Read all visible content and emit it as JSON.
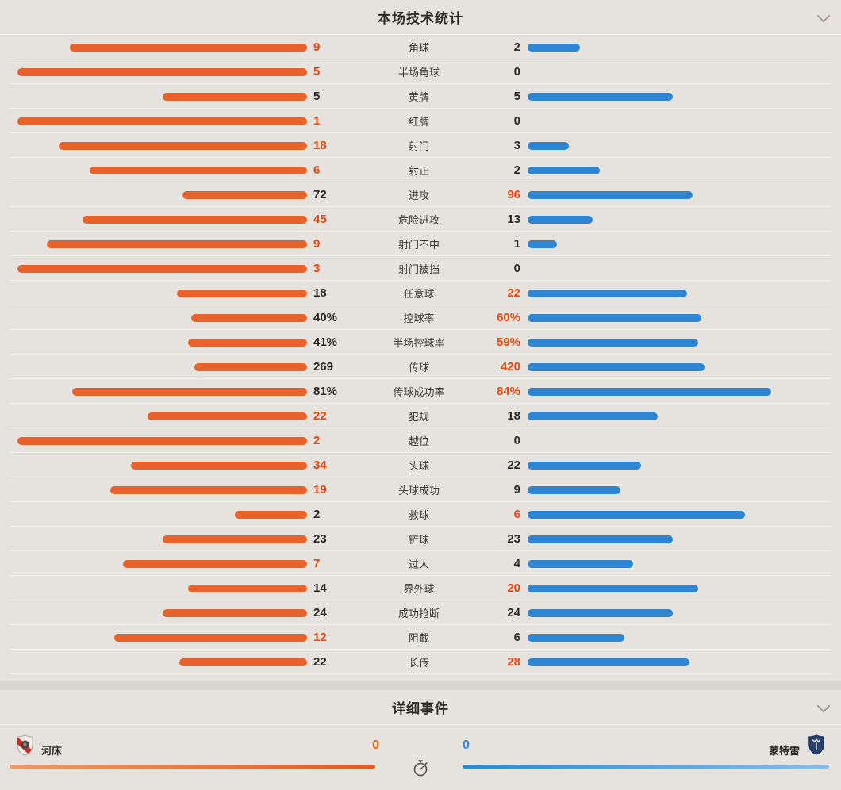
{
  "theme": {
    "home_color": "#e8622b",
    "away_color": "#2e86d2",
    "highlight_number_color": "#e8450f",
    "background": "#e6e2dd"
  },
  "stats_panel": {
    "title": "本场技术统计",
    "rows": [
      {
        "label": "角球",
        "left": "9",
        "right": "2",
        "left_w": 81.8,
        "right_w": 18.2,
        "left_hl": true,
        "right_hl": false
      },
      {
        "label": "半场角球",
        "left": "5",
        "right": "0",
        "left_w": 100,
        "right_w": 0,
        "left_hl": true,
        "right_hl": false
      },
      {
        "label": "黄牌",
        "left": "5",
        "right": "5",
        "left_w": 50,
        "right_w": 50,
        "left_hl": false,
        "right_hl": false
      },
      {
        "label": "红牌",
        "left": "1",
        "right": "0",
        "left_w": 100,
        "right_w": 0,
        "left_hl": true,
        "right_hl": false
      },
      {
        "label": "射门",
        "left": "18",
        "right": "3",
        "left_w": 85.7,
        "right_w": 14.3,
        "left_hl": true,
        "right_hl": false
      },
      {
        "label": "射正",
        "left": "6",
        "right": "2",
        "left_w": 75,
        "right_w": 25,
        "left_hl": true,
        "right_hl": false
      },
      {
        "label": "进攻",
        "left": "72",
        "right": "96",
        "left_w": 42.9,
        "right_w": 57.1,
        "left_hl": false,
        "right_hl": true
      },
      {
        "label": "危险进攻",
        "left": "45",
        "right": "13",
        "left_w": 77.6,
        "right_w": 22.4,
        "left_hl": true,
        "right_hl": false
      },
      {
        "label": "射门不中",
        "left": "9",
        "right": "1",
        "left_w": 90,
        "right_w": 10,
        "left_hl": true,
        "right_hl": false
      },
      {
        "label": "射门被挡",
        "left": "3",
        "right": "0",
        "left_w": 100,
        "right_w": 0,
        "left_hl": true,
        "right_hl": false
      },
      {
        "label": "任意球",
        "left": "18",
        "right": "22",
        "left_w": 45,
        "right_w": 55,
        "left_hl": false,
        "right_hl": true
      },
      {
        "label": "控球率",
        "left": "40%",
        "right": "60%",
        "left_w": 40,
        "right_w": 60,
        "left_hl": false,
        "right_hl": true
      },
      {
        "label": "半场控球率",
        "left": "41%",
        "right": "59%",
        "left_w": 41,
        "right_w": 59,
        "left_hl": false,
        "right_hl": true
      },
      {
        "label": "传球",
        "left": "269",
        "right": "420",
        "left_w": 39,
        "right_w": 61,
        "left_hl": false,
        "right_hl": true
      },
      {
        "label": "传球成功率",
        "left": "81%",
        "right": "84%",
        "left_w": 81,
        "right_w": 84,
        "left_hl": false,
        "right_hl": true
      },
      {
        "label": "犯规",
        "left": "22",
        "right": "18",
        "left_w": 55,
        "right_w": 45,
        "left_hl": true,
        "right_hl": false
      },
      {
        "label": "越位",
        "left": "2",
        "right": "0",
        "left_w": 100,
        "right_w": 0,
        "left_hl": true,
        "right_hl": false
      },
      {
        "label": "头球",
        "left": "34",
        "right": "22",
        "left_w": 60.7,
        "right_w": 39.3,
        "left_hl": true,
        "right_hl": false
      },
      {
        "label": "头球成功",
        "left": "19",
        "right": "9",
        "left_w": 67.9,
        "right_w": 32.1,
        "left_hl": true,
        "right_hl": false
      },
      {
        "label": "救球",
        "left": "2",
        "right": "6",
        "left_w": 25,
        "right_w": 75,
        "left_hl": false,
        "right_hl": true
      },
      {
        "label": "铲球",
        "left": "23",
        "right": "23",
        "left_w": 50,
        "right_w": 50,
        "left_hl": false,
        "right_hl": false
      },
      {
        "label": "过人",
        "left": "7",
        "right": "4",
        "left_w": 63.6,
        "right_w": 36.4,
        "left_hl": true,
        "right_hl": false
      },
      {
        "label": "界外球",
        "left": "14",
        "right": "20",
        "left_w": 41.2,
        "right_w": 58.8,
        "left_hl": false,
        "right_hl": true
      },
      {
        "label": "成功抢断",
        "left": "24",
        "right": "24",
        "left_w": 50,
        "right_w": 50,
        "left_hl": false,
        "right_hl": false
      },
      {
        "label": "阻截",
        "left": "12",
        "right": "6",
        "left_w": 66.7,
        "right_w": 33.3,
        "left_hl": true,
        "right_hl": false
      },
      {
        "label": "长传",
        "left": "22",
        "right": "28",
        "left_w": 44,
        "right_w": 56,
        "left_hl": false,
        "right_hl": true
      }
    ]
  },
  "events_panel": {
    "title": "详细事件",
    "home": {
      "name": "河床",
      "score": "0"
    },
    "away": {
      "name": "蒙特雷",
      "score": "0"
    }
  }
}
